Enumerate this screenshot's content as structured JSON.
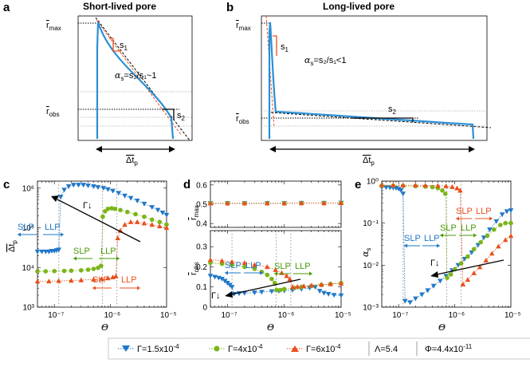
{
  "colors": {
    "blue": "#1f77c8",
    "green": "#7cb518",
    "red": "#e8501e",
    "curve": "#2a8fd6",
    "dash_red": "#e8501e",
    "gray": "#999999"
  },
  "panels": {
    "a": {
      "letter": "a",
      "title": "Short-lived pore",
      "rmax": "r",
      "rmax_sub": "max",
      "robs": "r",
      "robs_sub": "obs",
      "s1": "s",
      "s1_sub": "1",
      "s2": "s",
      "s2_sub": "2",
      "alpha_expr": "=s₂/s₁~1",
      "alpha": "α",
      "alpha_sub": "s",
      "dt": "Δt",
      "dt_sub": "p"
    },
    "b": {
      "letter": "b",
      "title": "Long-lived pore",
      "rmax": "r",
      "rmax_sub": "max",
      "robs": "r",
      "robs_sub": "obs",
      "s1": "s",
      "s1_sub": "1",
      "s2": "s",
      "s2_sub": "2",
      "alpha_expr": "=s₂/s₁<1",
      "alpha": "α",
      "alpha_sub": "s",
      "dt": "Δt",
      "dt_sub": "p"
    },
    "c": {
      "letter": "c",
      "ylabel": "Δt",
      "ylabel_sub": "p",
      "xlabel": "Θ",
      "slp": "SLP",
      "llp": "LLP",
      "gamma": "Γ↓"
    },
    "d": {
      "letter": "d",
      "ylabel_top": "r",
      "ylabel_top_sub": "max",
      "ylabel_bot": "r",
      "ylabel_bot_sub": "obs",
      "xlabel": "Θ",
      "slp": "SLP",
      "llp": "LLP",
      "gamma": "Γ↓"
    },
    "e": {
      "letter": "e",
      "ylabel": "α",
      "ylabel_sub": "s",
      "xlabel": "Θ",
      "slp": "SLP",
      "llp": "LLP",
      "gamma": "Γ↓"
    }
  },
  "legend": {
    "items": [
      {
        "label": "Γ=1.5x10",
        "exp": "-4",
        "marker": "triangle-down",
        "color": "#1f77c8"
      },
      {
        "label": "Γ=4x10",
        "exp": "-4",
        "marker": "circle",
        "color": "#7cb518"
      },
      {
        "label": "Γ=6x10",
        "exp": "-4",
        "marker": "triangle-up",
        "color": "#e8501e"
      }
    ],
    "lambda": "Λ=5.4",
    "phi": "Φ=4.4x10",
    "phi_exp": "-11"
  },
  "chart_data": [
    {
      "id": "c",
      "type": "scatter",
      "xscale": "log",
      "yscale": "log",
      "xlim": [
        5e-08,
        1e-05
      ],
      "ylim": [
        1000,
        1500000
      ],
      "xticks": [
        1e-07,
        1e-06,
        1e-05
      ],
      "xtick_labels": [
        "10⁻⁷",
        "10⁻⁶",
        "10⁻⁵"
      ],
      "yticks": [
        1000,
        10000,
        100000,
        1000000
      ],
      "ytick_labels": [
        "10³",
        "10⁴",
        "10⁵",
        "10⁶"
      ],
      "xlabel": "Θ",
      "ylabel": "Δt_p",
      "transitions": [
        1.2e-07,
        7.2e-07,
        1.3e-06
      ],
      "series": [
        {
          "name": "Γ=1.5x10⁻⁴",
          "color": "#1f77c8",
          "marker": "triangle-down",
          "x": [
            5e-08,
            6e-08,
            7e-08,
            8e-08,
            9e-08,
            1e-07,
            1.1e-07,
            1.2e-07,
            1.3e-07,
            1.5e-07,
            1.8e-07,
            2.2e-07,
            2.7e-07,
            3.3e-07,
            4e-07,
            5e-07,
            6e-07,
            7.5e-07,
            9e-07,
            1.1e-06,
            1.4e-06,
            1.8e-06,
            2.3e-06,
            3e-06,
            4e-06,
            5.5e-06,
            7e-06,
            8.5e-06,
            1e-05
          ],
          "y": [
            25000,
            25000,
            25000,
            25000,
            26000,
            26000,
            27000,
            28000,
            600000,
            900000,
            1100000,
            1200000,
            1200000,
            1200000,
            1150000,
            1100000,
            1050000,
            1000000,
            930000,
            850000,
            750000,
            640000,
            560000,
            480000,
            400000,
            330000,
            280000,
            240000,
            210000
          ]
        },
        {
          "name": "Γ=4x10⁻⁴",
          "color": "#7cb518",
          "marker": "circle",
          "x": [
            5e-08,
            7e-08,
            1e-07,
            1.5e-07,
            2e-07,
            3e-07,
            4e-07,
            5e-07,
            6e-07,
            6.8e-07,
            7.3e-07,
            8e-07,
            9e-07,
            1.05e-06,
            1.2e-06,
            1.5e-06,
            2e-06,
            2.8e-06,
            4e-06,
            5.5e-06,
            7.5e-06,
            1e-05
          ],
          "y": [
            8000,
            8000,
            8100,
            8200,
            8300,
            8500,
            8800,
            9200,
            9800,
            11000,
            190000,
            260000,
            300000,
            310000,
            300000,
            280000,
            250000,
            220000,
            190000,
            160000,
            140000,
            120000
          ]
        },
        {
          "name": "Γ=6x10⁻⁴",
          "color": "#e8501e",
          "marker": "triangle-up",
          "x": [
            5e-08,
            8e-08,
            1.2e-07,
            2e-07,
            3e-07,
            5e-07,
            7e-07,
            9e-07,
            1.1e-06,
            1.25e-06,
            1.35e-06,
            1.5e-06,
            1.8e-06,
            2.3e-06,
            3e-06,
            4e-06,
            5.5e-06,
            7.5e-06,
            1e-05
          ],
          "y": [
            4500,
            4500,
            4600,
            4700,
            4800,
            5000,
            5200,
            5400,
            5700,
            6000,
            55000,
            85000,
            120000,
            140000,
            140000,
            130000,
            120000,
            110000,
            100000
          ]
        }
      ]
    },
    {
      "id": "d_top",
      "type": "scatter",
      "xscale": "log",
      "xlim": [
        5e-08,
        1e-05
      ],
      "ylim": [
        0.38,
        0.62
      ],
      "yticks": [
        0.4,
        0.5,
        0.6
      ],
      "ytick_labels": [
        "0.4",
        "0.5",
        "0.6"
      ],
      "ylabel": "r_max",
      "series": [
        {
          "name": "Γ=1.5x10⁻⁴",
          "color": "#1f77c8",
          "marker": "triangle-down",
          "x": [
            5e-08,
            1e-07,
            2e-07,
            5e-07,
            1e-06,
            2e-06,
            5e-06,
            1e-05
          ],
          "y": [
            0.505,
            0.505,
            0.505,
            0.505,
            0.505,
            0.506,
            0.506,
            0.507
          ]
        },
        {
          "name": "Γ=4x10⁻⁴",
          "color": "#7cb518",
          "marker": "circle",
          "x": [
            5e-08,
            1e-07,
            2e-07,
            5e-07,
            1e-06,
            2e-06,
            5e-06,
            1e-05
          ],
          "y": [
            0.505,
            0.505,
            0.505,
            0.505,
            0.505,
            0.506,
            0.506,
            0.507
          ]
        },
        {
          "name": "Γ=6x10⁻⁴",
          "color": "#e8501e",
          "marker": "triangle-up",
          "x": [
            5e-08,
            1e-07,
            2e-07,
            5e-07,
            1e-06,
            2e-06,
            5e-06,
            1e-05
          ],
          "y": [
            0.505,
            0.505,
            0.505,
            0.505,
            0.505,
            0.506,
            0.506,
            0.507
          ]
        }
      ]
    },
    {
      "id": "d_bot",
      "type": "scatter",
      "xscale": "log",
      "xlim": [
        5e-08,
        1e-05
      ],
      "ylim": [
        0,
        0.38
      ],
      "xticks": [
        1e-07,
        1e-06,
        1e-05
      ],
      "xtick_labels": [
        "10⁻⁷",
        "10⁻⁶",
        "10⁻⁵"
      ],
      "yticks": [
        0,
        0.1,
        0.2,
        0.3
      ],
      "ytick_labels": [
        "0",
        "0.1",
        "0.2",
        "0.3"
      ],
      "xlabel": "Θ",
      "ylabel": "r_obs",
      "transitions": [
        1.2e-07,
        7.2e-07,
        1.3e-06
      ],
      "series": [
        {
          "name": "Γ=1.5x10⁻⁴",
          "color": "#1f77c8",
          "marker": "triangle-down",
          "x": [
            5e-08,
            6e-08,
            7e-08,
            8e-08,
            9e-08,
            1e-07,
            1.1e-07,
            1.2e-07,
            1.3e-07,
            1.6e-07,
            2e-07,
            3e-07,
            4e-07,
            6e-07,
            8e-07,
            1e-06,
            1.4e-06,
            2e-06,
            2.8e-06,
            3.5e-06,
            4.2e-06,
            5e-06,
            6e-06,
            7.5e-06,
            1e-05
          ],
          "y": [
            0.155,
            0.15,
            0.145,
            0.14,
            0.13,
            0.12,
            0.11,
            0.1,
            0.065,
            0.068,
            0.07,
            0.072,
            0.075,
            0.078,
            0.08,
            0.082,
            0.085,
            0.09,
            0.095,
            0.1,
            0.08,
            0.07,
            0.065,
            0.06,
            0.058
          ]
        },
        {
          "name": "Γ=4x10⁻⁴",
          "color": "#7cb518",
          "marker": "circle",
          "x": [
            5e-08,
            8e-08,
            1.2e-07,
            2e-07,
            3e-07,
            4e-07,
            5e-07,
            6e-07,
            6.8e-07,
            7.3e-07,
            8.5e-07,
            1e-06,
            1.5e-06,
            2e-06,
            3e-06,
            4.5e-06,
            6.5e-06,
            1e-05
          ],
          "y": [
            0.22,
            0.215,
            0.21,
            0.2,
            0.19,
            0.175,
            0.16,
            0.14,
            0.12,
            0.085,
            0.085,
            0.09,
            0.095,
            0.1,
            0.105,
            0.11,
            0.115,
            0.12
          ]
        },
        {
          "name": "Γ=6x10⁻⁴",
          "color": "#e8501e",
          "marker": "triangle-up",
          "x": [
            5e-08,
            8e-08,
            1.2e-07,
            2e-07,
            3e-07,
            5e-07,
            7e-07,
            9e-07,
            1.1e-06,
            1.25e-06,
            1.4e-06,
            1.7e-06,
            2.2e-06,
            3e-06,
            4.5e-06,
            6.5e-06,
            1e-05
          ],
          "y": [
            0.235,
            0.23,
            0.225,
            0.22,
            0.21,
            0.2,
            0.185,
            0.17,
            0.155,
            0.14,
            0.1,
            0.102,
            0.105,
            0.108,
            0.112,
            0.115,
            0.118
          ]
        }
      ]
    },
    {
      "id": "e",
      "type": "scatter",
      "xscale": "log",
      "yscale": "log",
      "xlim": [
        5e-08,
        1e-05
      ],
      "ylim": [
        0.001,
        1
      ],
      "xticks": [
        1e-07,
        1e-06,
        1e-05
      ],
      "xtick_labels": [
        "10⁻⁷",
        "10⁻⁶",
        "10⁻⁵"
      ],
      "yticks": [
        0.001,
        0.01,
        0.1,
        1
      ],
      "ytick_labels": [
        "10⁻³",
        "10⁻²",
        "10⁻¹",
        "10⁰"
      ],
      "xlabel": "Θ",
      "ylabel": "α_s",
      "transitions": [
        1.2e-07,
        7.2e-07,
        1.3e-06
      ],
      "series": [
        {
          "name": "Γ=1.5x10⁻⁴",
          "color": "#1f77c8",
          "marker": "triangle-down",
          "x": [
            5e-08,
            6e-08,
            7e-08,
            8e-08,
            9e-08,
            1e-07,
            1.1e-07,
            1.2e-07,
            1.3e-07,
            1.6e-07,
            2e-07,
            2.6e-07,
            3.3e-07,
            4.2e-07,
            5.5e-07,
            7e-07,
            9e-07,
            1.15e-06,
            1.5e-06,
            2e-06,
            2.6e-06,
            3.3e-06,
            4.2e-06,
            5.5e-06,
            7e-06,
            8.5e-06,
            1e-05
          ],
          "y": [
            0.72,
            0.71,
            0.7,
            0.69,
            0.68,
            0.65,
            0.6,
            0.5,
            0.0014,
            0.0013,
            0.0016,
            0.002,
            0.0025,
            0.0032,
            0.0042,
            0.0055,
            0.0075,
            0.01,
            0.014,
            0.02,
            0.03,
            0.045,
            0.07,
            0.11,
            0.16,
            0.19,
            0.2
          ]
        },
        {
          "name": "Γ=4x10⁻⁴",
          "color": "#7cb518",
          "marker": "circle",
          "x": [
            5e-08,
            8e-08,
            1.2e-07,
            2e-07,
            3e-07,
            4e-07,
            5e-07,
            6e-07,
            6.8e-07,
            7.3e-07,
            8.5e-07,
            1e-06,
            1.3e-06,
            1.7e-06,
            2.2e-06,
            2.9e-06,
            3.8e-06,
            5e-06,
            6.5e-06,
            8e-06,
            1e-05
          ],
          "y": [
            0.78,
            0.78,
            0.77,
            0.76,
            0.74,
            0.72,
            0.68,
            0.6,
            0.5,
            0.005,
            0.006,
            0.008,
            0.011,
            0.016,
            0.024,
            0.035,
            0.05,
            0.07,
            0.09,
            0.1,
            0.1
          ]
        },
        {
          "name": "Γ=6x10⁻⁴",
          "color": "#e8501e",
          "marker": "triangle-up",
          "x": [
            5e-08,
            8e-08,
            1.2e-07,
            2e-07,
            3e-07,
            5e-07,
            7e-07,
            9e-07,
            1.1e-06,
            1.25e-06,
            1.4e-06,
            1.7e-06,
            2.2e-06,
            2.8e-06,
            3.6e-06,
            4.6e-06,
            6e-06,
            8e-06,
            1e-05
          ],
          "y": [
            0.8,
            0.8,
            0.8,
            0.8,
            0.79,
            0.78,
            0.76,
            0.73,
            0.68,
            0.6,
            0.0035,
            0.0045,
            0.0065,
            0.009,
            0.013,
            0.019,
            0.028,
            0.04,
            0.05
          ]
        }
      ]
    }
  ]
}
